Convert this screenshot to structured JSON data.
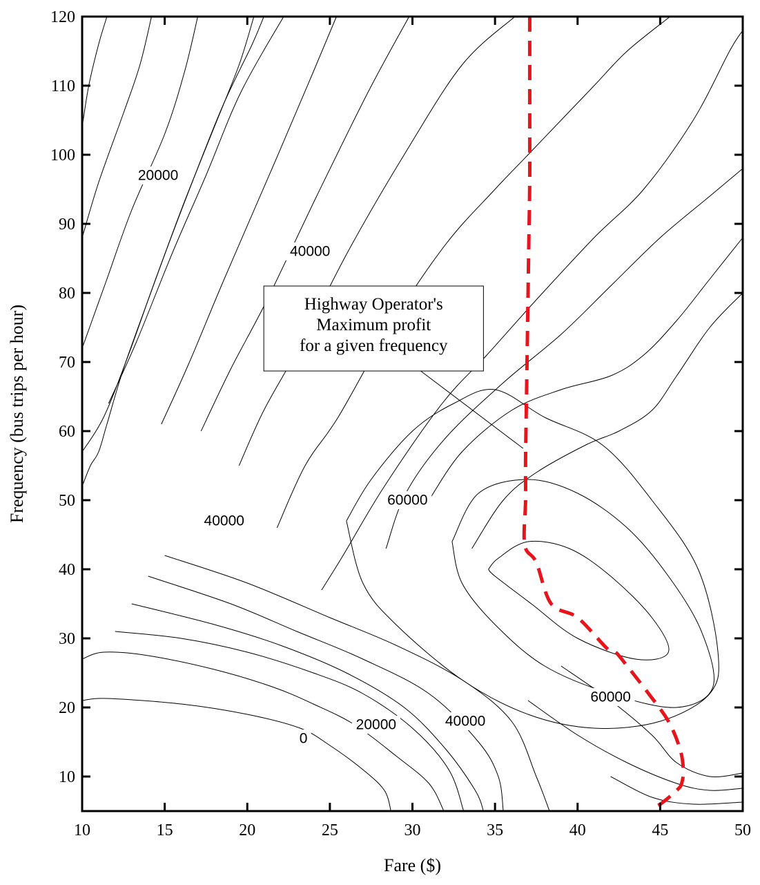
{
  "chart_data": {
    "type": "contour",
    "title": "",
    "xlabel": "Fare ($)",
    "ylabel": "Frequency (bus trips per hour)",
    "xlim": [
      10,
      50
    ],
    "ylim": [
      5,
      120
    ],
    "x_ticks": [
      10,
      15,
      20,
      25,
      30,
      35,
      40,
      45,
      50
    ],
    "y_ticks": [
      10,
      20,
      30,
      40,
      50,
      60,
      70,
      80,
      90,
      100,
      110,
      120
    ],
    "annotation": {
      "lines": [
        "Highway Operator's",
        "Maximum profit",
        "for a given frequency"
      ]
    },
    "contour_labels": [
      {
        "text": "20000",
        "x": 14.6,
        "y": 97
      },
      {
        "text": "40000",
        "x": 23.8,
        "y": 86
      },
      {
        "text": "40000",
        "x": 18.6,
        "y": 47
      },
      {
        "text": "60000",
        "x": 29.7,
        "y": 50
      },
      {
        "text": "0",
        "x": 23.4,
        "y": 15.5
      },
      {
        "text": "20000",
        "x": 27.8,
        "y": 17.5
      },
      {
        "text": "40000",
        "x": 33.2,
        "y": 18
      },
      {
        "text": "60000",
        "x": 42,
        "y": 21.5
      }
    ],
    "contours": [
      {
        "points": [
          [
            10,
            104
          ],
          [
            10.4,
            110
          ],
          [
            11,
            116
          ],
          [
            11.5,
            120
          ]
        ]
      },
      {
        "points": [
          [
            10,
            88
          ],
          [
            11,
            96
          ],
          [
            12.5,
            106
          ],
          [
            13.5,
            113
          ],
          [
            14.2,
            120
          ]
        ]
      },
      {
        "points": [
          [
            10,
            72
          ],
          [
            11.5,
            82
          ],
          [
            13,
            92
          ],
          [
            15,
            103
          ],
          [
            16.2,
            112
          ],
          [
            17,
            120
          ]
        ]
      },
      {
        "points": [
          [
            10,
            52
          ],
          [
            10.5,
            55
          ],
          [
            11,
            57
          ],
          [
            11.5,
            61
          ],
          [
            12.5,
            69
          ],
          [
            14,
            79
          ],
          [
            16,
            92
          ],
          [
            18,
            104
          ],
          [
            19.5,
            113
          ],
          [
            20.4,
            120
          ]
        ]
      },
      {
        "points": [
          [
            10,
            57
          ],
          [
            11.3,
            62
          ],
          [
            12.8,
            71
          ],
          [
            14.6,
            83
          ],
          [
            16.5,
            95
          ],
          [
            18.5,
            107
          ],
          [
            20.3,
            116
          ],
          [
            21,
            120
          ]
        ]
      },
      {
        "points": [
          [
            11.6,
            64
          ],
          [
            13.3,
            73
          ],
          [
            15.5,
            86
          ],
          [
            17.5,
            97
          ],
          [
            19.6,
            109
          ],
          [
            22.2,
            120
          ]
        ]
      },
      {
        "points": [
          [
            14.8,
            61
          ],
          [
            16.5,
            70
          ],
          [
            18.6,
            82
          ],
          [
            21.5,
            98
          ],
          [
            24,
            112
          ],
          [
            25.4,
            120
          ]
        ]
      },
      {
        "points": [
          [
            17.2,
            60
          ],
          [
            19,
            69
          ],
          [
            21.2,
            79
          ],
          [
            24.2,
            94
          ],
          [
            27.3,
            109
          ],
          [
            29.8,
            120
          ]
        ]
      },
      {
        "points": [
          [
            19.5,
            55
          ],
          [
            21,
            63
          ],
          [
            23.1,
            72
          ],
          [
            26.1,
            86
          ],
          [
            29.5,
            100
          ],
          [
            33,
            113
          ],
          [
            36.2,
            120
          ]
        ]
      },
      {
        "points": [
          [
            21.8,
            46
          ],
          [
            23.5,
            55
          ],
          [
            25.5,
            62
          ],
          [
            28.6,
            75
          ],
          [
            32,
            87
          ],
          [
            35,
            95
          ],
          [
            37,
            100
          ],
          [
            39,
            105
          ],
          [
            41,
            110
          ],
          [
            43,
            115
          ],
          [
            45.6,
            120
          ]
        ]
      },
      {
        "points": [
          [
            24.5,
            37
          ],
          [
            25.8,
            42
          ],
          [
            28.3,
            52
          ],
          [
            31.8,
            64
          ],
          [
            34.5,
            71
          ],
          [
            37.5,
            79
          ],
          [
            41,
            88
          ],
          [
            44,
            95
          ],
          [
            47,
            105
          ],
          [
            49.2,
            115
          ],
          [
            50,
            118
          ]
        ]
      },
      {
        "points": [
          [
            28.4,
            43
          ],
          [
            29.6,
            51
          ],
          [
            32,
            59
          ],
          [
            35.5,
            67
          ],
          [
            39,
            74
          ],
          [
            42,
            81
          ],
          [
            45,
            88
          ],
          [
            48,
            94
          ],
          [
            50,
            98
          ]
        ]
      },
      {
        "points": [
          [
            31,
            50
          ],
          [
            33,
            57
          ],
          [
            36,
            63
          ],
          [
            39,
            66
          ],
          [
            42,
            68
          ],
          [
            44,
            71
          ],
          [
            46,
            76
          ],
          [
            48,
            82
          ],
          [
            50,
            88
          ]
        ]
      },
      {
        "points": [
          [
            33.6,
            43
          ],
          [
            35.5,
            50
          ],
          [
            37.5,
            54
          ],
          [
            40.5,
            58
          ],
          [
            42.5,
            60
          ],
          [
            44.5,
            63
          ],
          [
            46,
            68
          ],
          [
            48,
            75
          ],
          [
            50,
            80
          ]
        ]
      },
      {
        "points": [
          [
            26,
            47
          ],
          [
            27.5,
            53
          ],
          [
            30,
            60
          ],
          [
            32.5,
            64
          ],
          [
            35,
            66
          ],
          [
            38,
            62
          ],
          [
            41.5,
            58
          ],
          [
            44.5,
            50
          ],
          [
            47.3,
            40
          ],
          [
            48.5,
            28
          ],
          [
            48,
            22
          ],
          [
            45,
            18
          ],
          [
            41,
            17
          ],
          [
            37,
            19
          ],
          [
            33,
            24
          ],
          [
            29,
            32
          ],
          [
            27,
            38
          ],
          [
            26,
            47
          ]
        ]
      },
      {
        "points": [
          [
            32.4,
            44
          ],
          [
            34,
            51
          ],
          [
            37,
            53
          ],
          [
            40,
            51
          ],
          [
            43,
            46
          ],
          [
            45.5,
            39
          ],
          [
            47.5,
            31
          ],
          [
            48.2,
            23
          ],
          [
            46,
            20
          ],
          [
            42,
            22
          ],
          [
            38,
            26
          ],
          [
            35,
            32
          ],
          [
            33,
            38
          ],
          [
            32.4,
            44
          ]
        ]
      },
      {
        "points": [
          [
            34.6,
            40
          ],
          [
            35.2,
            41.6
          ],
          [
            37,
            44
          ],
          [
            39.5,
            43
          ],
          [
            42,
            39
          ],
          [
            44.5,
            33
          ],
          [
            45.5,
            28
          ],
          [
            43.5,
            27
          ],
          [
            40,
            30
          ],
          [
            37.2,
            35
          ],
          [
            35,
            39
          ],
          [
            34.6,
            40
          ]
        ]
      },
      {
        "points": [
          [
            10,
            27
          ],
          [
            11.3,
            28
          ],
          [
            14,
            27.5
          ],
          [
            18,
            25.5
          ],
          [
            21.5,
            23
          ],
          [
            24,
            20.5
          ],
          [
            26.5,
            17.5
          ],
          [
            29,
            13
          ],
          [
            31,
            9
          ],
          [
            31.9,
            5
          ]
        ]
      },
      {
        "points": [
          [
            10,
            21
          ],
          [
            11.5,
            21.3
          ],
          [
            16,
            20.5
          ],
          [
            20,
            19
          ],
          [
            23.2,
            17
          ],
          [
            25,
            14.5
          ],
          [
            27,
            11
          ],
          [
            28.3,
            8
          ],
          [
            28.7,
            5
          ]
        ]
      },
      {
        "points": [
          [
            12,
            31
          ],
          [
            16,
            30
          ],
          [
            20,
            28
          ],
          [
            24,
            25
          ],
          [
            27,
            22
          ],
          [
            30,
            17
          ],
          [
            32.2,
            11
          ],
          [
            33.1,
            5
          ]
        ]
      },
      {
        "points": [
          [
            13,
            35
          ],
          [
            18,
            32
          ],
          [
            22,
            29
          ],
          [
            26,
            25
          ],
          [
            29.5,
            20
          ],
          [
            32,
            14
          ],
          [
            33.8,
            8
          ],
          [
            34.3,
            5
          ]
        ]
      },
      {
        "points": [
          [
            14,
            39
          ],
          [
            19,
            35
          ],
          [
            23,
            31
          ],
          [
            27,
            27
          ],
          [
            31,
            22
          ],
          [
            34,
            15
          ],
          [
            35.2,
            10
          ],
          [
            35.5,
            5
          ]
        ]
      },
      {
        "points": [
          [
            15,
            42
          ],
          [
            20,
            38
          ],
          [
            25,
            33
          ],
          [
            29,
            29
          ],
          [
            33,
            24
          ],
          [
            36,
            18
          ],
          [
            37.5,
            10
          ],
          [
            38.3,
            5
          ]
        ]
      },
      {
        "points": [
          [
            39,
            26
          ],
          [
            42,
            21
          ],
          [
            44.5,
            16
          ],
          [
            46,
            12
          ],
          [
            48,
            10
          ],
          [
            50,
            10.5
          ]
        ]
      },
      {
        "points": [
          [
            37,
            21
          ],
          [
            40,
            16
          ],
          [
            43,
            12
          ],
          [
            46,
            9
          ],
          [
            48,
            8
          ],
          [
            50,
            8.3
          ]
        ]
      },
      {
        "points": [
          [
            42,
            10
          ],
          [
            44.5,
            7
          ],
          [
            47,
            6
          ],
          [
            50,
            6.3
          ]
        ]
      }
    ],
    "series": [
      {
        "name": "Highway Operator's Maximum profit for a given frequency",
        "style": "dashed",
        "color": "#e8141b",
        "points": [
          [
            37.1,
            120
          ],
          [
            37.1,
            112
          ],
          [
            37.1,
            104
          ],
          [
            37.1,
            96
          ],
          [
            37.05,
            88
          ],
          [
            37.0,
            80
          ],
          [
            36.95,
            72
          ],
          [
            36.9,
            64
          ],
          [
            36.85,
            56
          ],
          [
            36.85,
            50
          ],
          [
            36.8,
            43.5
          ],
          [
            37.5,
            41
          ],
          [
            38.4,
            35
          ],
          [
            40,
            33
          ],
          [
            41.8,
            28.5
          ],
          [
            42.3,
            28
          ],
          [
            43,
            26
          ],
          [
            44.3,
            22
          ],
          [
            45.5,
            18
          ],
          [
            46.2,
            14
          ],
          [
            46.4,
            11
          ],
          [
            46.3,
            9
          ],
          [
            46,
            8
          ],
          [
            45,
            6
          ],
          [
            44.4,
            5.4
          ]
        ]
      }
    ]
  }
}
